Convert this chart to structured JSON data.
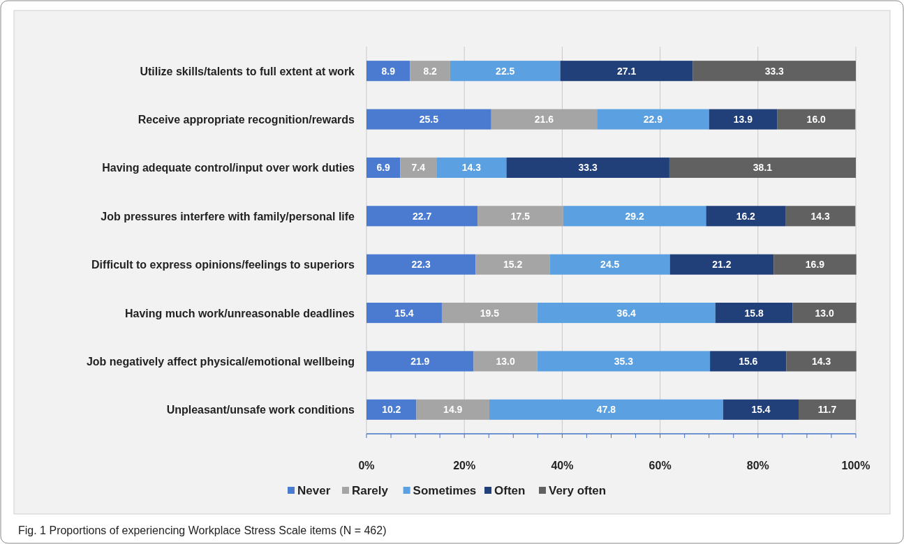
{
  "chart_data": {
    "type": "bar",
    "orientation": "horizontal",
    "stacked": true,
    "grid": "x",
    "legend": "bottom",
    "categories": [
      "Utilize skills/talents to full extent at work",
      "Receive appropriate recognition/rewards",
      "Having adequate control/input over work duties",
      "Job pressures interfere with family/personal life",
      "Difficult to express opinions/feelings to superiors",
      "Having much work/unreasonable deadlines",
      "Job negatively affect physical/emotional wellbeing",
      "Unpleasant/unsafe work conditions"
    ],
    "series": [
      {
        "name": "Never",
        "color": "#4a7bd0",
        "values": [
          8.9,
          25.5,
          6.9,
          22.7,
          22.3,
          15.4,
          21.9,
          10.2
        ],
        "value_labels": [
          "8.9",
          "25.5",
          "6.9",
          "22.7",
          "22.3",
          "15.4",
          "21.9",
          "10.2"
        ]
      },
      {
        "name": "Rarely",
        "color": "#a5a5a5",
        "values": [
          8.2,
          21.6,
          7.4,
          17.5,
          15.2,
          19.5,
          13.0,
          14.9
        ],
        "value_labels": [
          "8.2",
          "21.6",
          "7.4",
          "17.5",
          "15.2",
          "19.5",
          "13.0",
          "14.9"
        ]
      },
      {
        "name": "Sometimes",
        "color": "#5ba0e0",
        "values": [
          22.5,
          22.9,
          14.3,
          29.2,
          24.5,
          36.4,
          35.3,
          47.8
        ],
        "value_labels": [
          "22.5",
          "22.9",
          "14.3",
          "29.2",
          "24.5",
          "36.4",
          "35.3",
          "47.8"
        ]
      },
      {
        "name": "Often",
        "color": "#213f78",
        "values": [
          27.1,
          13.9,
          33.3,
          16.2,
          21.2,
          15.8,
          15.6,
          15.4
        ],
        "value_labels": [
          "27.1",
          "13.9",
          "33.3",
          "16.2",
          "21.2",
          "15.8",
          "15.6",
          "15.4"
        ]
      },
      {
        "name": "Very often",
        "color": "#616161",
        "values": [
          33.3,
          16.0,
          38.1,
          14.3,
          16.9,
          13.0,
          14.3,
          11.7
        ],
        "value_labels": [
          "33.3",
          "16.0",
          "38.1",
          "14.3",
          "16.9",
          "13.0",
          "14.3",
          "11.7"
        ]
      }
    ],
    "xlim": [
      0,
      100
    ],
    "xticks": [
      {
        "value": 0,
        "label": "0%"
      },
      {
        "value": 5,
        "label": null
      },
      {
        "value": 10,
        "label": null
      },
      {
        "value": 15,
        "label": null
      },
      {
        "value": 20,
        "label": "20%"
      },
      {
        "value": 25,
        "label": null
      },
      {
        "value": 30,
        "label": null
      },
      {
        "value": 35,
        "label": null
      },
      {
        "value": 40,
        "label": "40%"
      },
      {
        "value": 45,
        "label": null
      },
      {
        "value": 50,
        "label": null
      },
      {
        "value": 55,
        "label": null
      },
      {
        "value": 60,
        "label": "60%"
      },
      {
        "value": 65,
        "label": null
      },
      {
        "value": 70,
        "label": null
      },
      {
        "value": 75,
        "label": null
      },
      {
        "value": 80,
        "label": "80%"
      },
      {
        "value": 85,
        "label": null
      },
      {
        "value": 90,
        "label": null
      },
      {
        "value": 95,
        "label": null
      },
      {
        "value": 100,
        "label": "100%"
      }
    ],
    "annotations": [
      "Fig. 1  Proportions of experiencing Workplace Stress Scale items (N = 462)"
    ]
  }
}
